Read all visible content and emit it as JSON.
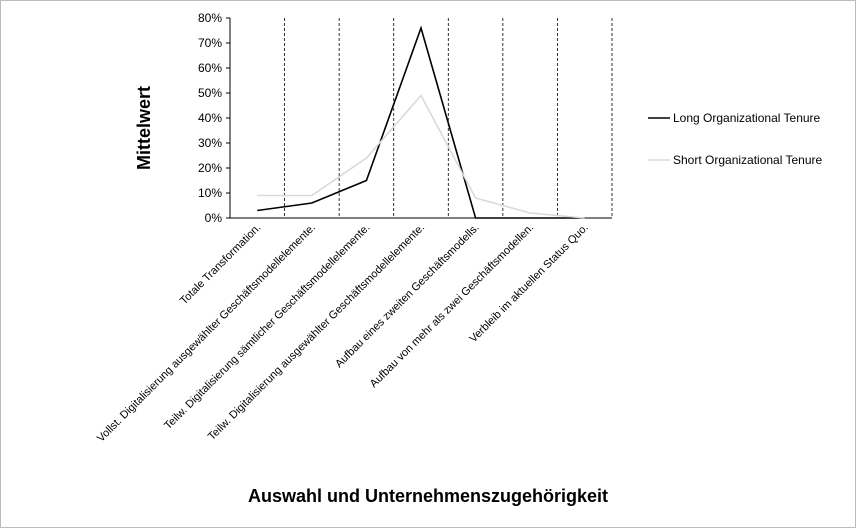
{
  "chart_data": {
    "type": "line",
    "categories": [
      "Totale Transformation.",
      "Vollst. Digitalisierung ausgewählter Geschäftsmodellelemente.",
      "Teilw. Digitalisierung sämtlicher Geschäftsmodellelemente.",
      "Teilw. Digitalisierung ausgewählter Geschäftsmodellelemente.",
      "Aufbau eines zweiten Geschäftsmodells.",
      "Aufbau von mehr als zwei Geschäftsmodellen.",
      "Verbleib im aktuellen Status Quo."
    ],
    "series": [
      {
        "name": "Long Organizational Tenure",
        "color": "#000000",
        "values": [
          3,
          6,
          15,
          76,
          0,
          0,
          0
        ]
      },
      {
        "name": "Short Organizational Tenure",
        "color": "#d9d9d9",
        "values": [
          9,
          9,
          24,
          49,
          8,
          2,
          0
        ]
      }
    ],
    "ylim": [
      0,
      80
    ],
    "yticks": [
      {
        "value": 0,
        "label": "0%"
      },
      {
        "value": 10,
        "label": "10%"
      },
      {
        "value": 20,
        "label": "20%"
      },
      {
        "value": 30,
        "label": "30%"
      },
      {
        "value": 40,
        "label": "40%"
      },
      {
        "value": 50,
        "label": "50%"
      },
      {
        "value": 60,
        "label": "60%"
      },
      {
        "value": 70,
        "label": "70%"
      },
      {
        "value": 80,
        "label": "80%"
      }
    ],
    "ylabel": "Mittelwert",
    "xlabel": "Auswahl und Unternehmenszugehörigkeit",
    "legend": "right"
  }
}
